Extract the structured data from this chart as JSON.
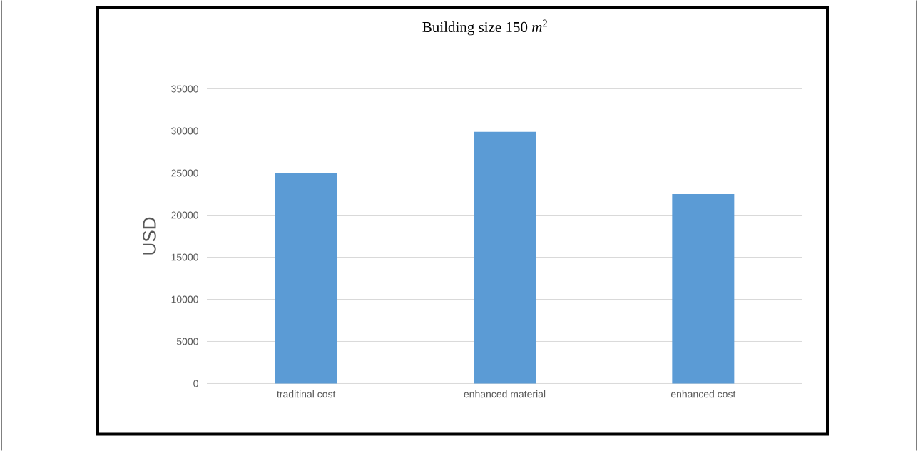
{
  "chart_data": {
    "type": "bar",
    "title": "Building size 150 *m*$^{2}$",
    "ylabel": "USD",
    "categories": [
      "traditinal cost",
      "enhanced material",
      "enhanced cost"
    ],
    "values": [
      25000,
      29900,
      22500
    ],
    "color": "#5b9bd5",
    "ylim": [
      0,
      35000
    ],
    "yticks": [
      0,
      5000,
      10000,
      15000,
      20000,
      25000,
      30000,
      35000
    ],
    "grid": "y"
  }
}
